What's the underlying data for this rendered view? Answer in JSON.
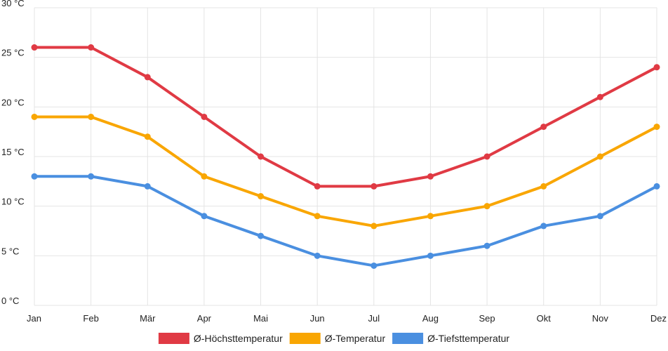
{
  "chart_data": {
    "type": "line",
    "title": "",
    "xlabel": "",
    "ylabel": "",
    "categories": [
      "Jan",
      "Feb",
      "Mär",
      "Apr",
      "Mai",
      "Jun",
      "Jul",
      "Aug",
      "Sep",
      "Okt",
      "Nov",
      "Dez"
    ],
    "ylim": [
      0,
      30
    ],
    "yticks": [
      0,
      5,
      10,
      15,
      20,
      25,
      30
    ],
    "y_tick_labels": [
      "0 °C",
      "5 °C",
      "10 °C",
      "15 °C",
      "20 °C",
      "25 °C",
      "30 °C"
    ],
    "grid": true,
    "legend_position": "bottom",
    "series": [
      {
        "name": "Ø-Höchsttemperatur",
        "color": "#e03a44",
        "values": [
          26,
          26,
          23,
          19,
          15,
          12,
          12,
          13,
          15,
          18,
          21,
          24
        ]
      },
      {
        "name": "Ø-Temperatur",
        "color": "#f9a602",
        "values": [
          19,
          19,
          17,
          13,
          11,
          9,
          8,
          9,
          10,
          12,
          15,
          18
        ]
      },
      {
        "name": "Ø-Tiefsttemperatur",
        "color": "#4a8fe0",
        "values": [
          13,
          13,
          12,
          9,
          7,
          5,
          4,
          5,
          6,
          8,
          9,
          12
        ]
      }
    ]
  }
}
